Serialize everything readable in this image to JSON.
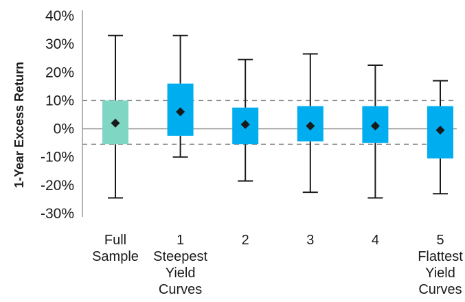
{
  "chart_data": {
    "type": "box",
    "ylabel": "1-Year Excess Return",
    "ylim": [
      -30,
      40
    ],
    "yticks": [
      -30,
      -20,
      -10,
      0,
      10,
      20,
      30,
      40
    ],
    "ytick_labels": [
      "-30%",
      "-20%",
      "-10%",
      "0%",
      "10%",
      "20%",
      "30%",
      "40%"
    ],
    "reference_lines": {
      "solid": [
        0
      ],
      "dashed": [
        10,
        -5.5
      ]
    },
    "categories": [
      {
        "label_lines": [
          "Full",
          "Sample"
        ]
      },
      {
        "label_lines": [
          "1",
          "Steepest",
          "Yield",
          "Curves"
        ]
      },
      {
        "label_lines": [
          "2"
        ]
      },
      {
        "label_lines": [
          "3"
        ]
      },
      {
        "label_lines": [
          "4"
        ]
      },
      {
        "label_lines": [
          "5",
          "Flattest",
          "Yield",
          "Curves"
        ]
      }
    ],
    "series": [
      {
        "boxes": [
          {
            "min": -24.5,
            "q1": -5.5,
            "q3": 10,
            "max": 33,
            "mean": 2,
            "color": "#7fd6c3"
          },
          {
            "min": -10,
            "q1": -2.5,
            "q3": 16,
            "max": 33,
            "mean": 6,
            "color": "#00aeef"
          },
          {
            "min": -18.5,
            "q1": -5.5,
            "q3": 7.5,
            "max": 24.5,
            "mean": 1.5,
            "color": "#00aeef"
          },
          {
            "min": -22.5,
            "q1": -4.5,
            "q3": 8,
            "max": 26.5,
            "mean": 1,
            "color": "#00aeef"
          },
          {
            "min": -24.5,
            "q1": -5,
            "q3": 8,
            "max": 22.5,
            "mean": 1,
            "color": "#00aeef"
          },
          {
            "min": -23,
            "q1": -10.5,
            "q3": 8,
            "max": 17,
            "mean": -0.5,
            "color": "#00aeef"
          }
        ]
      }
    ],
    "colors": {
      "axis": "#9a9a9a",
      "whisker": "#1a1a1a",
      "mean_marker": "#1a1a1a",
      "text": "#1a1a1a",
      "dashed": "#888888",
      "zero_line": "#9a9a9a"
    }
  }
}
